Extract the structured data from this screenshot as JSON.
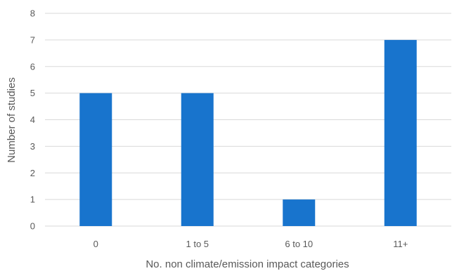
{
  "chart_data": {
    "type": "bar",
    "categories": [
      "0",
      "1 to 5",
      "6 to 10",
      "11+"
    ],
    "values": [
      5,
      5,
      1,
      7
    ],
    "title": "",
    "xlabel": "No. non climate/emission impact categories",
    "ylabel": "Number of studies",
    "ylim": [
      0,
      8
    ],
    "yticks": [
      "0",
      "1",
      "2",
      "3",
      "4",
      "5",
      "6",
      "7",
      "8"
    ],
    "grid": true,
    "legend": "none",
    "bar_color": "#1874cd"
  }
}
